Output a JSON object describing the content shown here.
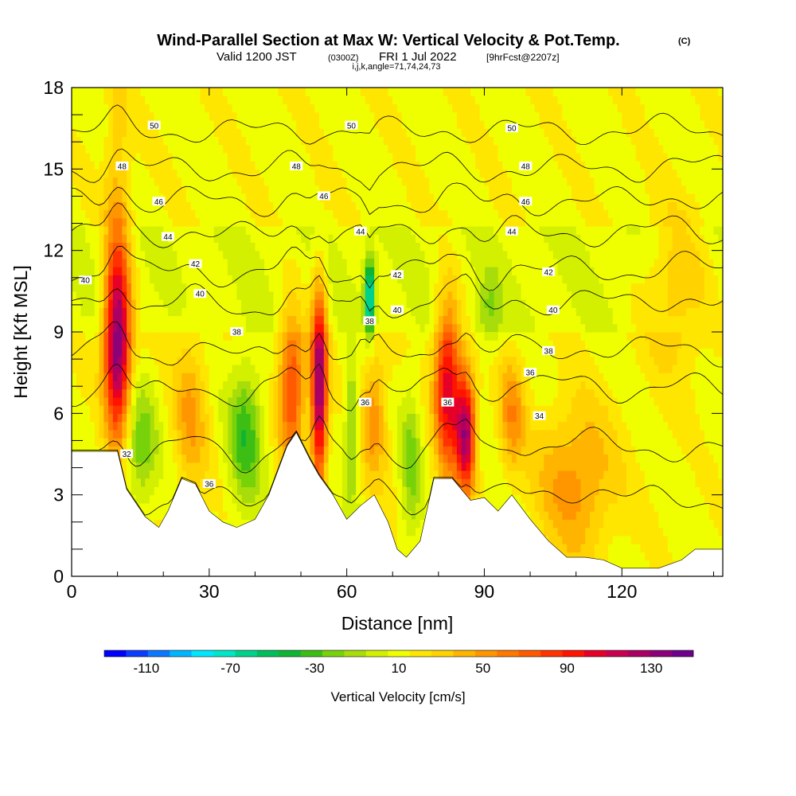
{
  "header": {
    "title": "Wind-Parallel Section at Max W: Vertical Velocity & Pot.Temp.",
    "title_suffix": "(C)",
    "valid_main": "Valid 1200 JST",
    "valid_z": "(0300Z)",
    "valid_date": "FRI 1 Jul 2022",
    "forecast": "[9hrFcst@2207z]",
    "indices": "i,j,k,angle=71,74,24,73"
  },
  "chart_data": {
    "type": "heatmap",
    "xlabel": "Distance [nm]",
    "ylabel": "Height [Kft MSL]",
    "xlim": [
      0,
      142
    ],
    "ylim": [
      0,
      18
    ],
    "xticks": [
      0,
      30,
      60,
      90,
      120
    ],
    "yticks": [
      0,
      3,
      6,
      9,
      12,
      15,
      18
    ],
    "colorbar": {
      "label": "Vertical Velocity [cm/s]",
      "tick_labels": [
        -110,
        -70,
        -30,
        10,
        50,
        90,
        130
      ],
      "range": [
        -130,
        150
      ],
      "colors": [
        "#0000ff",
        "#0a3cff",
        "#0a78ff",
        "#00b4ff",
        "#00e6ff",
        "#00e6c8",
        "#00d28c",
        "#00be5a",
        "#0fb432",
        "#3cbe14",
        "#78d20a",
        "#a8dc0a",
        "#d2f000",
        "#f0ff00",
        "#ffe600",
        "#ffd200",
        "#ffb400",
        "#ff9600",
        "#ff7800",
        "#ff5a00",
        "#ff3200",
        "#ff1400",
        "#e60028",
        "#c80050",
        "#aa0064",
        "#8c0078",
        "#6e008c"
      ]
    },
    "terrain_profile": [
      [
        0,
        4.6
      ],
      [
        10,
        4.6
      ],
      [
        12,
        3.2
      ],
      [
        16,
        2.2
      ],
      [
        19,
        1.8
      ],
      [
        21,
        2.4
      ],
      [
        24,
        3.6
      ],
      [
        27,
        3.4
      ],
      [
        30,
        2.4
      ],
      [
        33,
        2.0
      ],
      [
        36,
        1.8
      ],
      [
        40,
        2.1
      ],
      [
        43,
        3.0
      ],
      [
        47,
        4.8
      ],
      [
        49,
        5.3
      ],
      [
        52,
        4.3
      ],
      [
        54,
        3.7
      ],
      [
        57,
        3.0
      ],
      [
        60,
        2.1
      ],
      [
        63,
        2.6
      ],
      [
        66,
        3.0
      ],
      [
        69,
        2.0
      ],
      [
        71,
        1.0
      ],
      [
        73,
        0.7
      ],
      [
        76,
        1.3
      ],
      [
        79,
        3.6
      ],
      [
        83,
        3.6
      ],
      [
        87,
        2.8
      ],
      [
        90,
        2.9
      ],
      [
        93,
        2.4
      ],
      [
        96,
        3.0
      ],
      [
        100,
        2.1
      ],
      [
        104,
        1.3
      ],
      [
        108,
        0.7
      ],
      [
        112,
        0.7
      ],
      [
        116,
        0.6
      ],
      [
        120,
        0.3
      ],
      [
        128,
        0.3
      ],
      [
        133,
        0.6
      ],
      [
        136,
        1.0
      ],
      [
        142,
        1.0
      ]
    ],
    "updrafts": [
      {
        "x": 10,
        "y": 8.5,
        "sx": 2.0,
        "sy": 2.3,
        "w": 115
      },
      {
        "x": 10,
        "y": 12.5,
        "sx": 2.0,
        "sy": 4.0,
        "w": 30
      },
      {
        "x": 26,
        "y": 6.0,
        "sx": 2.5,
        "sy": 2.0,
        "w": 35
      },
      {
        "x": 48,
        "y": 7.0,
        "sx": 2.0,
        "sy": 2.0,
        "w": 70
      },
      {
        "x": 54,
        "y": 7.0,
        "sx": 1.2,
        "sy": 2.5,
        "w": 125
      },
      {
        "x": 66,
        "y": 6.0,
        "sx": 2.0,
        "sy": 1.8,
        "w": 40
      },
      {
        "x": 82,
        "y": 7.0,
        "sx": 2.0,
        "sy": 2.2,
        "w": 95
      },
      {
        "x": 86,
        "y": 5.3,
        "sx": 1.5,
        "sy": 1.5,
        "w": 110
      },
      {
        "x": 96,
        "y": 6.0,
        "sx": 2.0,
        "sy": 1.5,
        "w": 40
      },
      {
        "x": 110,
        "y": 3.5,
        "sx": 6.0,
        "sy": 2.0,
        "w": 40
      },
      {
        "x": 132,
        "y": 10.5,
        "sx": 5.0,
        "sy": 2.0,
        "w": 28
      }
    ],
    "downdrafts": [
      {
        "x": 15,
        "y": 4.8,
        "sx": 2.5,
        "sy": 1.5,
        "w": -35
      },
      {
        "x": 38,
        "y": 5.2,
        "sx": 2.5,
        "sy": 1.8,
        "w": -45
      },
      {
        "x": 61,
        "y": 5.5,
        "sx": 1.0,
        "sy": 2.0,
        "w": -35
      },
      {
        "x": 65,
        "y": 10.3,
        "sx": 0.8,
        "sy": 1.0,
        "w": -95
      },
      {
        "x": 74,
        "y": 4.0,
        "sx": 1.5,
        "sy": 2.0,
        "w": -30
      },
      {
        "x": 91,
        "y": 9.7,
        "sx": 2.0,
        "sy": 1.0,
        "w": -25
      }
    ],
    "isentropes": [
      {
        "theta": 32,
        "base": 2.8,
        "label_pos": [
          [
            12,
            4.5
          ]
        ]
      },
      {
        "theta": 34,
        "base": 4.6,
        "label_pos": [
          [
            102,
            5.9
          ]
        ]
      },
      {
        "theta": 36,
        "base": 6.8,
        "label_pos": [
          [
            30,
            3.4
          ],
          [
            64,
            6.4
          ],
          [
            82,
            6.4
          ],
          [
            100,
            7.5
          ]
        ]
      },
      {
        "theta": 38,
        "base": 8.2,
        "label_pos": [
          [
            36,
            9.0
          ],
          [
            65,
            9.4
          ],
          [
            104,
            8.3
          ]
        ]
      },
      {
        "theta": 40,
        "base": 10.0,
        "label_pos": [
          [
            3,
            10.9
          ],
          [
            28,
            10.4
          ],
          [
            71,
            9.8
          ],
          [
            105,
            9.8
          ]
        ]
      },
      {
        "theta": 42,
        "base": 11.2,
        "label_pos": [
          [
            27,
            11.5
          ],
          [
            71,
            11.1
          ],
          [
            104,
            11.2
          ]
        ]
      },
      {
        "theta": 44,
        "base": 12.6,
        "label_pos": [
          [
            21,
            12.5
          ],
          [
            63,
            12.7
          ],
          [
            96,
            12.7
          ]
        ]
      },
      {
        "theta": 46,
        "base": 13.8,
        "label_pos": [
          [
            19,
            13.8
          ],
          [
            55,
            14.0
          ],
          [
            99,
            13.8
          ]
        ]
      },
      {
        "theta": 48,
        "base": 15.0,
        "label_pos": [
          [
            11,
            15.1
          ],
          [
            49,
            15.1
          ],
          [
            99,
            15.1
          ]
        ]
      },
      {
        "theta": 50,
        "base": 16.4,
        "label_pos": [
          [
            18,
            16.6
          ],
          [
            61,
            16.6
          ],
          [
            96,
            16.5
          ]
        ]
      }
    ]
  }
}
